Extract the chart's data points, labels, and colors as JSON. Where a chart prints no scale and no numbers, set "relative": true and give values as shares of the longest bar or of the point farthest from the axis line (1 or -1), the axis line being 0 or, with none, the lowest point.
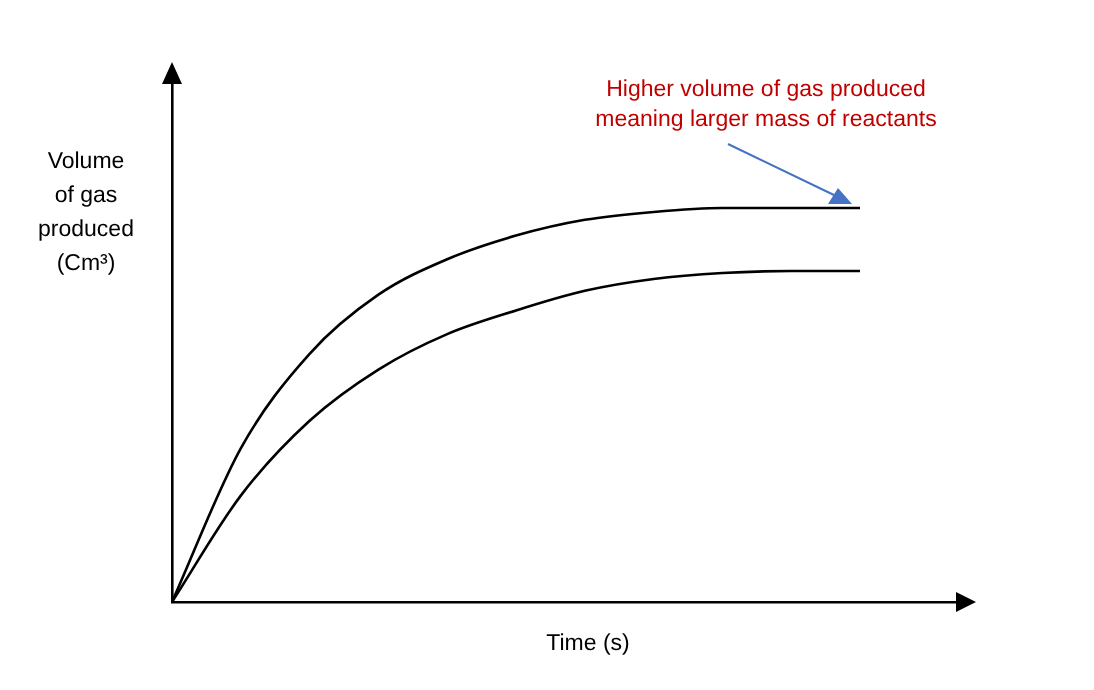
{
  "chart_data": {
    "type": "line",
    "relative": true,
    "xlabel": "Time (s)",
    "ylabel": "Volume\nof gas\nproduced\n(Cm³)",
    "marker": "none",
    "categories": [
      null,
      null,
      null,
      null,
      null,
      null,
      null,
      null,
      null,
      null,
      null
    ],
    "series": [
      {
        "color": "#000000",
        "values": [
          0,
          0.39,
          0.63,
          0.78,
          0.87,
          0.93,
          0.97,
          0.99,
          1,
          1,
          1
        ]
      },
      {
        "color": "#000000",
        "values": [
          0,
          0.27,
          0.46,
          0.59,
          0.68,
          0.74,
          0.79,
          0.82,
          0.835,
          0.84,
          0.84
        ]
      }
    ],
    "annotations": [
      "Higher volume of gas produced\nmeaning larger mass of reactants"
    ]
  }
}
